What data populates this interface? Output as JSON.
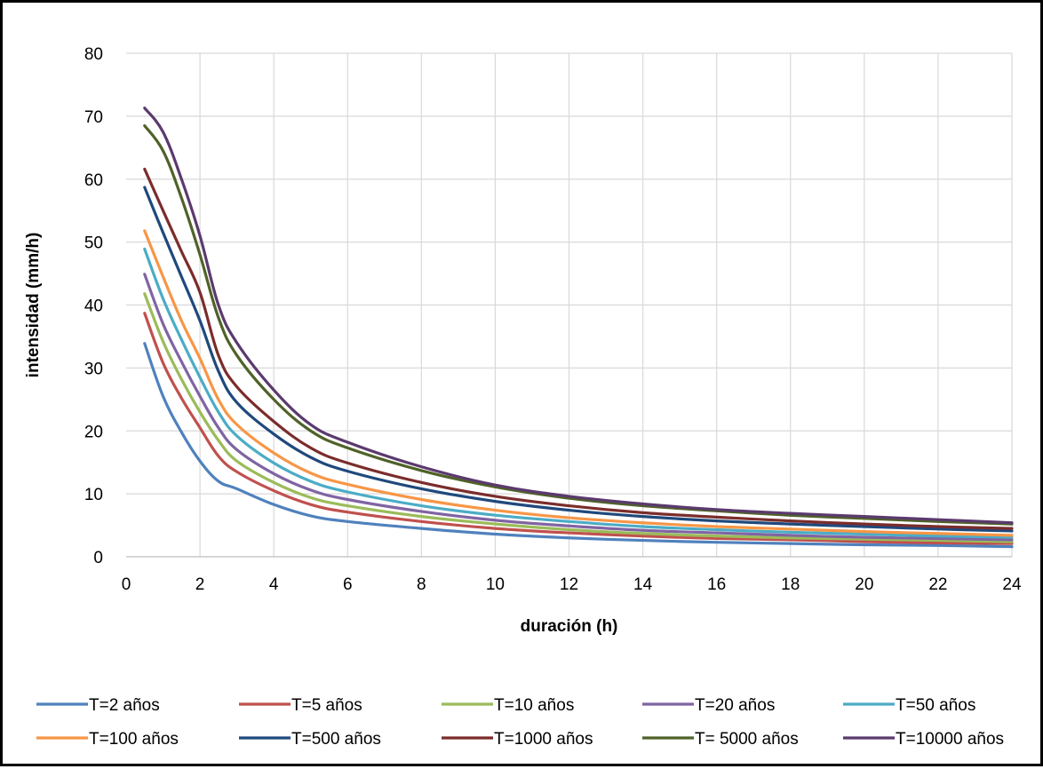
{
  "chart_data": {
    "type": "line",
    "title": "",
    "xlabel": "duración (h)",
    "ylabel": "intensidad (mm/h)",
    "xlim": [
      0,
      24
    ],
    "ylim": [
      0,
      80
    ],
    "x_ticks": [
      0,
      2,
      4,
      6,
      8,
      10,
      12,
      14,
      16,
      18,
      20,
      22,
      24
    ],
    "y_ticks": [
      0,
      10,
      20,
      30,
      40,
      50,
      60,
      70,
      80
    ],
    "grid": true,
    "legend_position": "bottom",
    "x": [
      0.5,
      1,
      1.5,
      2,
      2.5,
      3,
      4,
      5,
      6,
      8,
      10,
      12,
      14,
      16,
      18,
      20,
      22,
      24
    ],
    "series": [
      {
        "name": "T=2 años",
        "color": "#4f81bd",
        "values": [
          33.9,
          25.5,
          19.8,
          15.2,
          12.0,
          10.8,
          8.3,
          6.5,
          5.6,
          4.5,
          3.6,
          3.0,
          2.6,
          2.3,
          2.1,
          1.9,
          1.8,
          1.6
        ]
      },
      {
        "name": "T=5 años",
        "color": "#c0504d",
        "values": [
          38.7,
          30.8,
          25.2,
          20.5,
          16.0,
          13.5,
          10.5,
          8.3,
          7.1,
          5.6,
          4.5,
          3.8,
          3.3,
          2.9,
          2.7,
          2.4,
          2.2,
          2.1
        ]
      },
      {
        "name": "T=10 años",
        "color": "#9bbb59",
        "values": [
          41.8,
          34.2,
          28.2,
          23.0,
          18.5,
          15.2,
          11.8,
          9.4,
          8.1,
          6.4,
          5.2,
          4.3,
          3.7,
          3.3,
          3.0,
          2.8,
          2.6,
          2.4
        ]
      },
      {
        "name": "T=20 años",
        "color": "#8064a2",
        "values": [
          44.9,
          37.0,
          31.0,
          25.5,
          20.5,
          17.0,
          13.2,
          10.6,
          9.1,
          7.2,
          5.8,
          4.9,
          4.2,
          3.8,
          3.4,
          3.1,
          2.9,
          2.7
        ]
      },
      {
        "name": "T=50 años",
        "color": "#4bacc6",
        "values": [
          48.9,
          41.0,
          34.5,
          28.5,
          23.0,
          19.2,
          14.9,
          12.0,
          10.3,
          8.1,
          6.6,
          5.6,
          4.8,
          4.3,
          3.9,
          3.6,
          3.3,
          3.1
        ]
      },
      {
        "name": "T=100 años",
        "color": "#f79646",
        "values": [
          51.8,
          44.5,
          37.5,
          31.5,
          25.0,
          21.0,
          16.5,
          13.3,
          11.5,
          9.1,
          7.4,
          6.2,
          5.4,
          4.8,
          4.4,
          4.0,
          3.7,
          3.4
        ]
      },
      {
        "name": "T=500 años",
        "color": "#1f497d",
        "values": [
          58.7,
          51.5,
          44.5,
          37.5,
          29.5,
          24.5,
          19.5,
          15.8,
          13.6,
          10.8,
          8.8,
          7.4,
          6.4,
          5.7,
          5.2,
          4.8,
          4.4,
          4.1
        ]
      },
      {
        "name": "T=1000 años",
        "color": "#7b2c2c",
        "values": [
          61.6,
          55.0,
          48.5,
          42.0,
          32.0,
          27.0,
          21.5,
          17.3,
          14.9,
          11.8,
          9.6,
          8.1,
          7.0,
          6.3,
          5.7,
          5.2,
          4.8,
          4.5
        ]
      },
      {
        "name": "T= 5000 años",
        "color": "#4f6228",
        "values": [
          68.5,
          64.5,
          57.0,
          48.0,
          38.0,
          32.0,
          25.0,
          20.0,
          17.3,
          13.7,
          11.1,
          9.3,
          8.1,
          7.3,
          6.6,
          6.1,
          5.6,
          5.2
        ]
      },
      {
        "name": "T=10000 años",
        "color": "#5b3a6e",
        "values": [
          71.3,
          67.5,
          60.0,
          51.0,
          40.0,
          34.0,
          26.5,
          21.0,
          18.2,
          14.3,
          11.4,
          9.6,
          8.4,
          7.5,
          6.9,
          6.4,
          5.9,
          5.4
        ]
      }
    ]
  }
}
